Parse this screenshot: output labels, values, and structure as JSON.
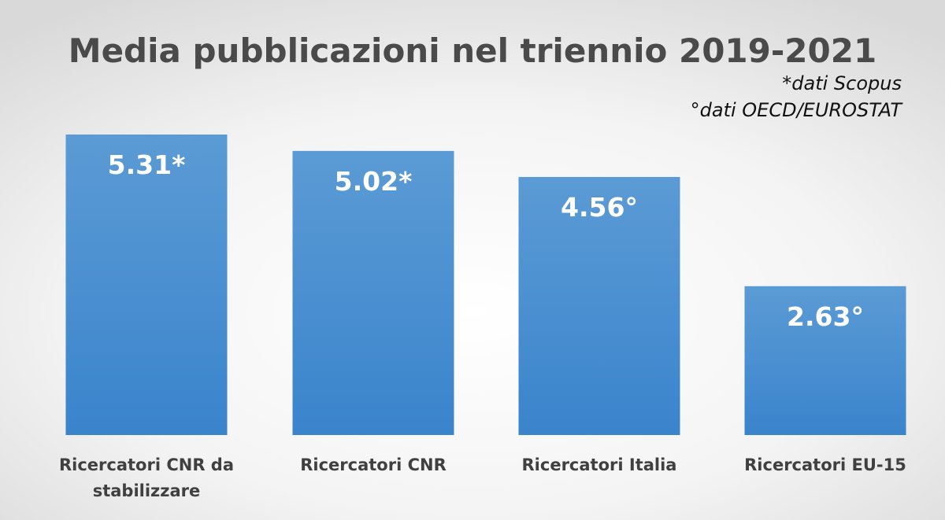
{
  "chart_data": {
    "type": "bar",
    "title": "Media pubblicazioni nel triennio 2019-2021",
    "notes": [
      "*dati Scopus",
      "°dati OECD/EUROSTAT"
    ],
    "categories": [
      [
        "Ricercatori CNR da",
        "stabilizzare"
      ],
      [
        "Ricercatori CNR"
      ],
      [
        "Ricercatori Italia"
      ],
      [
        "Ricercatori EU-15"
      ]
    ],
    "values": [
      5.31,
      5.02,
      4.56,
      2.63
    ],
    "data_labels": [
      "5.31*",
      "5.02*",
      "4.56°",
      "2.63°"
    ],
    "ylim": [
      0,
      5.31
    ],
    "grid": false,
    "legend": "none",
    "colors": {
      "bar_top": "#5b9bd5",
      "bar_bottom": "#3a84cc",
      "label": "#ffffff",
      "axis_text": "#404040",
      "title": "#4a4a4a"
    }
  }
}
